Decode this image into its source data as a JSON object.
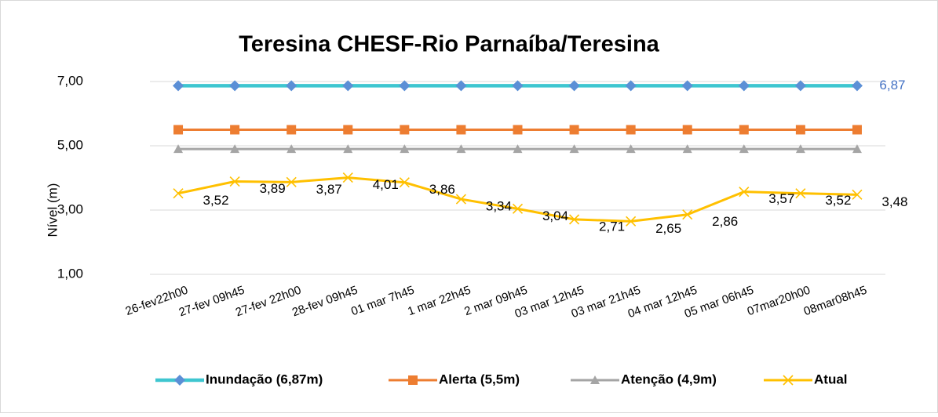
{
  "chart_data": {
    "type": "line",
    "title": "Teresina CHESF-Rio Parnaíba/Teresina",
    "y_label": "Nível (m)",
    "categories": [
      "26-fev22h00",
      "27-fev 09h45",
      "27-fev 22h00",
      "28-fev 09h45",
      "01 mar 7h45",
      "1 mar 22h45",
      "2 mar 09h45",
      "03 mar 12h45",
      "03 mar 21h45",
      "04 mar 12h45",
      "05 mar 06h45",
      "07mar20h00",
      "08mar08h45"
    ],
    "ylim": [
      1,
      7
    ],
    "yticks": [
      {
        "value": 1,
        "label": "1,00"
      },
      {
        "value": 3,
        "label": "3,00"
      },
      {
        "value": 5,
        "label": "5,00"
      },
      {
        "value": 7,
        "label": "7,00"
      }
    ],
    "grid": true,
    "legend": "bottom",
    "series": [
      {
        "name": "Inundação (6,87m)",
        "color": "#3ec6d0",
        "marker": "diamond",
        "marker_color": "#5b8fd6",
        "values": [
          6.87,
          6.87,
          6.87,
          6.87,
          6.87,
          6.87,
          6.87,
          6.87,
          6.87,
          6.87,
          6.87,
          6.87,
          6.87
        ],
        "value_labels": [
          null,
          null,
          null,
          null,
          null,
          null,
          null,
          null,
          null,
          null,
          null,
          null,
          "6,87"
        ],
        "label_color": "#4472c4"
      },
      {
        "name": "Alerta (5,5m)",
        "color": "#ed7d31",
        "marker": "square",
        "marker_color": "#ed7d31",
        "values": [
          5.5,
          5.5,
          5.5,
          5.5,
          5.5,
          5.5,
          5.5,
          5.5,
          5.5,
          5.5,
          5.5,
          5.5,
          5.5
        ]
      },
      {
        "name": "Atenção (4,9m)",
        "color": "#a5a5a5",
        "marker": "triangle",
        "marker_color": "#a5a5a5",
        "values": [
          4.9,
          4.9,
          4.9,
          4.9,
          4.9,
          4.9,
          4.9,
          4.9,
          4.9,
          4.9,
          4.9,
          4.9,
          4.9
        ]
      },
      {
        "name": "Atual",
        "color": "#ffc000",
        "marker": "x",
        "marker_color": "#ffc000",
        "values": [
          3.52,
          3.89,
          3.87,
          4.01,
          3.86,
          3.34,
          3.04,
          2.71,
          2.65,
          2.86,
          3.57,
          3.52,
          3.48
        ],
        "value_labels": [
          "3,52",
          "3,89",
          "3,87",
          "4,01",
          "3,86",
          "3,34",
          "3,04",
          "2,71",
          "2,65",
          "2,86",
          "3,57",
          "3,52",
          "3,48"
        ],
        "label_color": "#000000"
      }
    ]
  }
}
